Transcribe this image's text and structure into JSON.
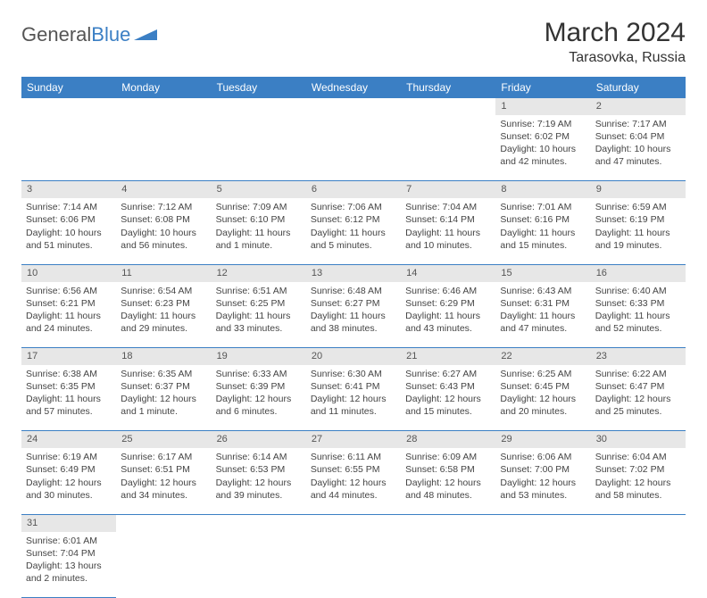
{
  "brand": {
    "part1": "General",
    "part2": "Blue"
  },
  "title": "March 2024",
  "location": "Tarasovka, Russia",
  "colors": {
    "header_bg": "#3b7fc4",
    "header_text": "#ffffff",
    "daynum_bg": "#e7e7e7",
    "border": "#3b7fc4",
    "text": "#444444"
  },
  "weekdays": [
    "Sunday",
    "Monday",
    "Tuesday",
    "Wednesday",
    "Thursday",
    "Friday",
    "Saturday"
  ],
  "weeks": [
    [
      null,
      null,
      null,
      null,
      null,
      {
        "n": "1",
        "sr": "Sunrise: 7:19 AM",
        "ss": "Sunset: 6:02 PM",
        "d1": "Daylight: 10 hours",
        "d2": "and 42 minutes."
      },
      {
        "n": "2",
        "sr": "Sunrise: 7:17 AM",
        "ss": "Sunset: 6:04 PM",
        "d1": "Daylight: 10 hours",
        "d2": "and 47 minutes."
      }
    ],
    [
      {
        "n": "3",
        "sr": "Sunrise: 7:14 AM",
        "ss": "Sunset: 6:06 PM",
        "d1": "Daylight: 10 hours",
        "d2": "and 51 minutes."
      },
      {
        "n": "4",
        "sr": "Sunrise: 7:12 AM",
        "ss": "Sunset: 6:08 PM",
        "d1": "Daylight: 10 hours",
        "d2": "and 56 minutes."
      },
      {
        "n": "5",
        "sr": "Sunrise: 7:09 AM",
        "ss": "Sunset: 6:10 PM",
        "d1": "Daylight: 11 hours",
        "d2": "and 1 minute."
      },
      {
        "n": "6",
        "sr": "Sunrise: 7:06 AM",
        "ss": "Sunset: 6:12 PM",
        "d1": "Daylight: 11 hours",
        "d2": "and 5 minutes."
      },
      {
        "n": "7",
        "sr": "Sunrise: 7:04 AM",
        "ss": "Sunset: 6:14 PM",
        "d1": "Daylight: 11 hours",
        "d2": "and 10 minutes."
      },
      {
        "n": "8",
        "sr": "Sunrise: 7:01 AM",
        "ss": "Sunset: 6:16 PM",
        "d1": "Daylight: 11 hours",
        "d2": "and 15 minutes."
      },
      {
        "n": "9",
        "sr": "Sunrise: 6:59 AM",
        "ss": "Sunset: 6:19 PM",
        "d1": "Daylight: 11 hours",
        "d2": "and 19 minutes."
      }
    ],
    [
      {
        "n": "10",
        "sr": "Sunrise: 6:56 AM",
        "ss": "Sunset: 6:21 PM",
        "d1": "Daylight: 11 hours",
        "d2": "and 24 minutes."
      },
      {
        "n": "11",
        "sr": "Sunrise: 6:54 AM",
        "ss": "Sunset: 6:23 PM",
        "d1": "Daylight: 11 hours",
        "d2": "and 29 minutes."
      },
      {
        "n": "12",
        "sr": "Sunrise: 6:51 AM",
        "ss": "Sunset: 6:25 PM",
        "d1": "Daylight: 11 hours",
        "d2": "and 33 minutes."
      },
      {
        "n": "13",
        "sr": "Sunrise: 6:48 AM",
        "ss": "Sunset: 6:27 PM",
        "d1": "Daylight: 11 hours",
        "d2": "and 38 minutes."
      },
      {
        "n": "14",
        "sr": "Sunrise: 6:46 AM",
        "ss": "Sunset: 6:29 PM",
        "d1": "Daylight: 11 hours",
        "d2": "and 43 minutes."
      },
      {
        "n": "15",
        "sr": "Sunrise: 6:43 AM",
        "ss": "Sunset: 6:31 PM",
        "d1": "Daylight: 11 hours",
        "d2": "and 47 minutes."
      },
      {
        "n": "16",
        "sr": "Sunrise: 6:40 AM",
        "ss": "Sunset: 6:33 PM",
        "d1": "Daylight: 11 hours",
        "d2": "and 52 minutes."
      }
    ],
    [
      {
        "n": "17",
        "sr": "Sunrise: 6:38 AM",
        "ss": "Sunset: 6:35 PM",
        "d1": "Daylight: 11 hours",
        "d2": "and 57 minutes."
      },
      {
        "n": "18",
        "sr": "Sunrise: 6:35 AM",
        "ss": "Sunset: 6:37 PM",
        "d1": "Daylight: 12 hours",
        "d2": "and 1 minute."
      },
      {
        "n": "19",
        "sr": "Sunrise: 6:33 AM",
        "ss": "Sunset: 6:39 PM",
        "d1": "Daylight: 12 hours",
        "d2": "and 6 minutes."
      },
      {
        "n": "20",
        "sr": "Sunrise: 6:30 AM",
        "ss": "Sunset: 6:41 PM",
        "d1": "Daylight: 12 hours",
        "d2": "and 11 minutes."
      },
      {
        "n": "21",
        "sr": "Sunrise: 6:27 AM",
        "ss": "Sunset: 6:43 PM",
        "d1": "Daylight: 12 hours",
        "d2": "and 15 minutes."
      },
      {
        "n": "22",
        "sr": "Sunrise: 6:25 AM",
        "ss": "Sunset: 6:45 PM",
        "d1": "Daylight: 12 hours",
        "d2": "and 20 minutes."
      },
      {
        "n": "23",
        "sr": "Sunrise: 6:22 AM",
        "ss": "Sunset: 6:47 PM",
        "d1": "Daylight: 12 hours",
        "d2": "and 25 minutes."
      }
    ],
    [
      {
        "n": "24",
        "sr": "Sunrise: 6:19 AM",
        "ss": "Sunset: 6:49 PM",
        "d1": "Daylight: 12 hours",
        "d2": "and 30 minutes."
      },
      {
        "n": "25",
        "sr": "Sunrise: 6:17 AM",
        "ss": "Sunset: 6:51 PM",
        "d1": "Daylight: 12 hours",
        "d2": "and 34 minutes."
      },
      {
        "n": "26",
        "sr": "Sunrise: 6:14 AM",
        "ss": "Sunset: 6:53 PM",
        "d1": "Daylight: 12 hours",
        "d2": "and 39 minutes."
      },
      {
        "n": "27",
        "sr": "Sunrise: 6:11 AM",
        "ss": "Sunset: 6:55 PM",
        "d1": "Daylight: 12 hours",
        "d2": "and 44 minutes."
      },
      {
        "n": "28",
        "sr": "Sunrise: 6:09 AM",
        "ss": "Sunset: 6:58 PM",
        "d1": "Daylight: 12 hours",
        "d2": "and 48 minutes."
      },
      {
        "n": "29",
        "sr": "Sunrise: 6:06 AM",
        "ss": "Sunset: 7:00 PM",
        "d1": "Daylight: 12 hours",
        "d2": "and 53 minutes."
      },
      {
        "n": "30",
        "sr": "Sunrise: 6:04 AM",
        "ss": "Sunset: 7:02 PM",
        "d1": "Daylight: 12 hours",
        "d2": "and 58 minutes."
      }
    ],
    [
      {
        "n": "31",
        "sr": "Sunrise: 6:01 AM",
        "ss": "Sunset: 7:04 PM",
        "d1": "Daylight: 13 hours",
        "d2": "and 2 minutes."
      },
      null,
      null,
      null,
      null,
      null,
      null
    ]
  ]
}
